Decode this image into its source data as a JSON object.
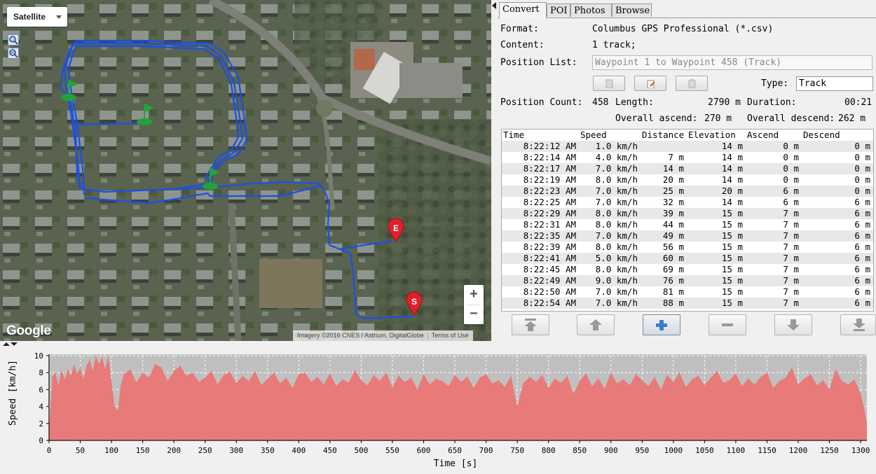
{
  "map": {
    "map_type": "Satellite",
    "zoom_in": "+",
    "zoom_out": "−",
    "logo": "Google",
    "attribution": "Imagery ©2016 CNES / Astrium, DigitalGlobe",
    "terms": "Terms of Use",
    "marker_start": "S",
    "marker_end": "E",
    "track_color": "#1a4fe8",
    "tool_icons": [
      "zoom-select-icon",
      "zoom-fit-icon"
    ]
  },
  "tabs": [
    "Convert",
    "POI",
    "Photos",
    "Browse"
  ],
  "info": {
    "format_label": "Format:",
    "format_value": "Columbus GPS Professional (*.csv)",
    "content_label": "Content:",
    "content_value": "1 track;",
    "poslist_label": "Position List:",
    "poslist_value": "Waypoint 1 to Waypoint 458 (Track)",
    "type_label": "Type:",
    "type_value": "Track",
    "count_label": "Position Count:",
    "count_value": "458",
    "length_label": "Length:",
    "length_value": "2790 m",
    "duration_label": "Duration:",
    "duration_value": "00:21",
    "ascend_label": "Overall ascend:",
    "ascend_value": "270 m",
    "descend_label": "Overall descend:",
    "descend_value": "262 m"
  },
  "table": {
    "columns": [
      "Time",
      "Speed",
      "Distance",
      "Elevation",
      "Ascend",
      "Descend"
    ],
    "rows": [
      [
        "8:22:12 AM",
        "1.0 km/h",
        "",
        "14 m",
        "0 m",
        "0 m"
      ],
      [
        "8:22:14 AM",
        "4.0 km/h",
        "7 m",
        "14 m",
        "0 m",
        "0 m"
      ],
      [
        "8:22:17 AM",
        "7.0 km/h",
        "14 m",
        "14 m",
        "0 m",
        "0 m"
      ],
      [
        "8:22:19 AM",
        "8.0 km/h",
        "20 m",
        "14 m",
        "0 m",
        "0 m"
      ],
      [
        "8:22:23 AM",
        "7.0 km/h",
        "25 m",
        "20 m",
        "6 m",
        "0 m"
      ],
      [
        "8:22:25 AM",
        "7.0 km/h",
        "32 m",
        "14 m",
        "6 m",
        "6 m"
      ],
      [
        "8:22:29 AM",
        "8.0 km/h",
        "39 m",
        "15 m",
        "7 m",
        "6 m"
      ],
      [
        "8:22:31 AM",
        "8.0 km/h",
        "44 m",
        "15 m",
        "7 m",
        "6 m"
      ],
      [
        "8:22:35 AM",
        "7.0 km/h",
        "49 m",
        "15 m",
        "7 m",
        "6 m"
      ],
      [
        "8:22:39 AM",
        "8.0 km/h",
        "56 m",
        "15 m",
        "7 m",
        "6 m"
      ],
      [
        "8:22:41 AM",
        "5.0 km/h",
        "60 m",
        "15 m",
        "7 m",
        "6 m"
      ],
      [
        "8:22:45 AM",
        "8.0 km/h",
        "69 m",
        "15 m",
        "7 m",
        "6 m"
      ],
      [
        "8:22:49 AM",
        "9.0 km/h",
        "76 m",
        "15 m",
        "7 m",
        "6 m"
      ],
      [
        "8:22:50 AM",
        "7.0 km/h",
        "81 m",
        "15 m",
        "7 m",
        "6 m"
      ],
      [
        "8:22:54 AM",
        "7.0 km/h",
        "88 m",
        "15 m",
        "7 m",
        "6 m"
      ]
    ]
  },
  "nav_buttons": [
    "move-top-icon",
    "move-up-icon",
    "add-icon",
    "remove-icon",
    "move-down-icon",
    "move-bottom-icon"
  ],
  "chart_data": {
    "type": "area",
    "xlabel": "Time [s]",
    "ylabel": "Speed [km/h]",
    "xlim": [
      0,
      1310
    ],
    "ylim": [
      0,
      10
    ],
    "xticks": [
      0,
      50,
      100,
      150,
      200,
      250,
      300,
      350,
      400,
      450,
      500,
      550,
      600,
      650,
      700,
      750,
      800,
      850,
      900,
      950,
      1000,
      1050,
      1100,
      1150,
      1200,
      1250,
      1300
    ],
    "yticks": [
      0,
      2,
      4,
      6,
      8,
      10
    ],
    "grid": true,
    "fill_color": "#e87a7a",
    "background": "#c0c0c0",
    "x": [
      0,
      5,
      10,
      15,
      20,
      25,
      30,
      35,
      40,
      45,
      50,
      55,
      60,
      65,
      70,
      75,
      80,
      85,
      90,
      95,
      100,
      105,
      110,
      115,
      120,
      130,
      140,
      150,
      160,
      170,
      180,
      190,
      200,
      210,
      220,
      230,
      240,
      250,
      260,
      270,
      280,
      290,
      300,
      310,
      320,
      330,
      340,
      350,
      360,
      370,
      380,
      390,
      400,
      410,
      420,
      430,
      440,
      450,
      460,
      470,
      480,
      490,
      500,
      510,
      520,
      530,
      540,
      550,
      560,
      570,
      580,
      590,
      600,
      610,
      620,
      630,
      640,
      650,
      660,
      670,
      680,
      690,
      700,
      710,
      720,
      730,
      740,
      750,
      760,
      770,
      780,
      790,
      800,
      810,
      820,
      830,
      840,
      850,
      860,
      870,
      880,
      890,
      900,
      910,
      920,
      930,
      940,
      950,
      960,
      970,
      980,
      990,
      1000,
      1010,
      1020,
      1030,
      1040,
      1050,
      1060,
      1070,
      1080,
      1090,
      1100,
      1110,
      1120,
      1130,
      1140,
      1150,
      1160,
      1170,
      1180,
      1190,
      1200,
      1210,
      1220,
      1230,
      1240,
      1250,
      1260,
      1270,
      1280,
      1290,
      1300,
      1305,
      1310
    ],
    "y": [
      1.0,
      7.5,
      8.0,
      6.5,
      8.3,
      7.2,
      8.4,
      7.6,
      9.0,
      7.8,
      8.6,
      7.2,
      8.8,
      9.5,
      8.2,
      10.0,
      9.0,
      9.8,
      8.4,
      10.0,
      7.0,
      4.0,
      3.5,
      6.5,
      7.8,
      8.4,
      6.8,
      8.0,
      7.4,
      9.0,
      8.6,
      7.0,
      8.2,
      8.8,
      7.6,
      8.0,
      6.9,
      7.4,
      8.2,
      6.6,
      7.7,
      8.1,
      6.8,
      7.6,
      7.0,
      8.2,
      6.5,
      7.3,
      8.0,
      6.7,
      7.4,
      6.2,
      7.8,
      8.0,
      6.9,
      7.5,
      6.6,
      7.9,
      6.4,
      7.2,
      6.8,
      8.3,
      7.1,
      6.5,
      7.7,
      7.0,
      8.0,
      6.3,
      7.6,
      6.9,
      7.4,
      6.0,
      7.8,
      6.6,
      7.3,
      7.0,
      6.4,
      7.7,
      6.9,
      7.5,
      6.2,
      7.4,
      7.8,
      6.7,
      7.1,
      6.3,
      7.6,
      4.0,
      6.8,
      7.5,
      6.9,
      7.7,
      6.2,
      7.3,
      6.8,
      7.6,
      5.5,
      7.0,
      7.9,
      6.4,
      7.3,
      6.1,
      8.0,
      6.7,
      7.2,
      6.5,
      7.8,
      7.1,
      6.4,
      7.5,
      6.0,
      7.7,
      6.9,
      8.0,
      6.3,
      7.2,
      7.6,
      6.5,
      7.4,
      8.2,
      6.8,
      7.1,
      7.9,
      6.4,
      7.3,
      6.6,
      7.5,
      8.0,
      6.2,
      7.0,
      7.4,
      8.6,
      6.6,
      7.3,
      7.8,
      6.5,
      7.1,
      6.0,
      8.4,
      7.0,
      6.6,
      7.2,
      5.5,
      4.0,
      2.0
    ]
  }
}
